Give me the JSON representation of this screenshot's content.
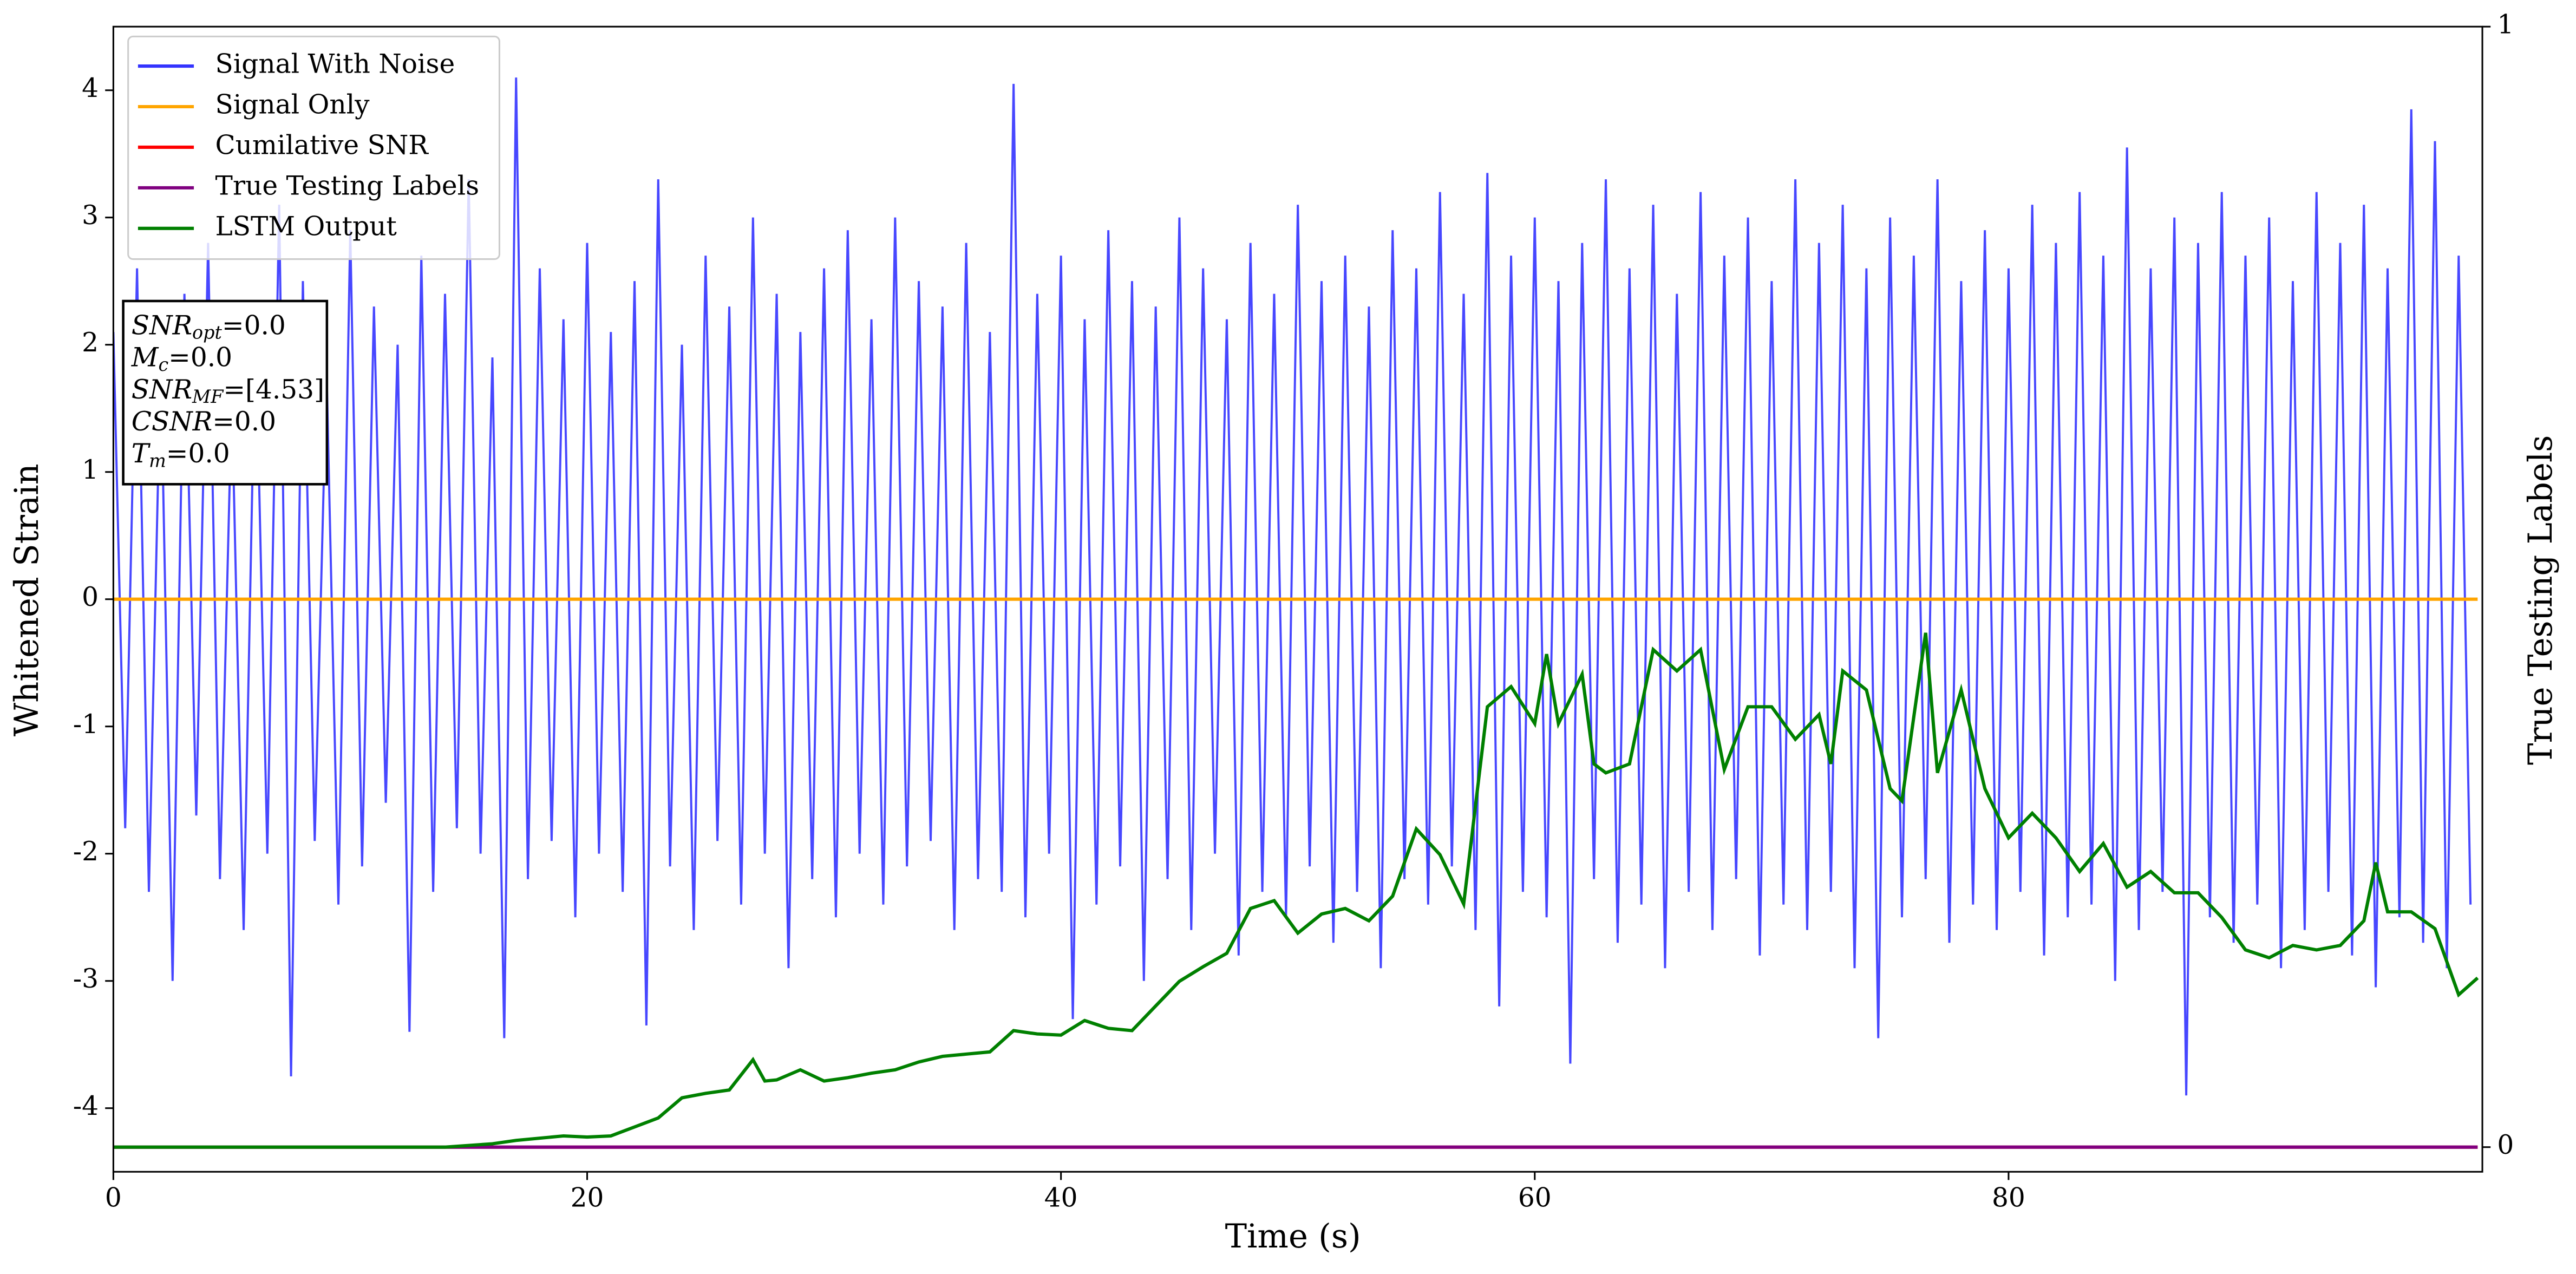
{
  "chart_data": {
    "type": "line",
    "xlabel": "Time (s)",
    "ylabel": "Whitened Strain",
    "y2label": "True Testing Labels",
    "xlim": [
      0,
      100
    ],
    "xticks": [
      0,
      20,
      40,
      60,
      80
    ],
    "ylim": [
      -4.5,
      4.5
    ],
    "yticks": [
      -4,
      -3,
      -2,
      -1,
      0,
      1,
      2,
      3,
      4
    ],
    "y2lim": [
      -0.022,
      1
    ],
    "y2ticks": [
      0,
      1
    ],
    "legend": "upper left",
    "annotations": [
      {
        "main": "SNR",
        "sub": "opt",
        "rest": "=0.0"
      },
      {
        "main": "M",
        "sub": "c",
        "rest": "=0.0"
      },
      {
        "main": "SNR",
        "sub": "MF",
        "rest": "=[4.53]"
      },
      {
        "main": "CSNR",
        "sub": null,
        "rest": "=0.0"
      },
      {
        "main": "T",
        "sub": "m",
        "rest": "=0.0"
      }
    ],
    "series": [
      {
        "name": "Signal With Noise",
        "color": "#3333ff",
        "axis": "y",
        "x": [
          0,
          0.5,
          1,
          1.5,
          2,
          2.5,
          3,
          3.5,
          4,
          4.5,
          5,
          5.5,
          6,
          6.5,
          7,
          7.5,
          8,
          8.5,
          9,
          9.5,
          10,
          10.5,
          11,
          11.5,
          12,
          12.5,
          13,
          13.5,
          14,
          14.5,
          15,
          15.5,
          16,
          16.5,
          17,
          17.5,
          18,
          18.5,
          19,
          19.5,
          20,
          20.5,
          21,
          21.5,
          22,
          22.5,
          23,
          23.5,
          24,
          24.5,
          25,
          25.5,
          26,
          26.5,
          27,
          27.5,
          28,
          28.5,
          29,
          29.5,
          30,
          30.5,
          31,
          31.5,
          32,
          32.5,
          33,
          33.5,
          34,
          34.5,
          35,
          35.5,
          36,
          36.5,
          37,
          37.5,
          38,
          38.5,
          39,
          39.5,
          40,
          40.5,
          41,
          41.5,
          42,
          42.5,
          43,
          43.5,
          44,
          44.5,
          45,
          45.5,
          46,
          46.5,
          47,
          47.5,
          48,
          48.5,
          49,
          49.5,
          50,
          50.5,
          51,
          51.5,
          52,
          52.5,
          53,
          53.5,
          54,
          54.5,
          55,
          55.5,
          56,
          56.5,
          57,
          57.5,
          58,
          58.5,
          59,
          59.5,
          60,
          60.5,
          61,
          61.5,
          62,
          62.5,
          63,
          63.5,
          64,
          64.5,
          65,
          65.5,
          66,
          66.5,
          67,
          67.5,
          68,
          68.5,
          69,
          69.5,
          70,
          70.5,
          71,
          71.5,
          72,
          72.5,
          73,
          73.5,
          74,
          74.5,
          75,
          75.5,
          76,
          76.5,
          77,
          77.5,
          78,
          78.5,
          79,
          79.5,
          80,
          80.5,
          81,
          81.5,
          82,
          82.5,
          83,
          83.5,
          84,
          84.5,
          85,
          85.5,
          86,
          86.5,
          87,
          87.5,
          88,
          88.5,
          89,
          89.5,
          90,
          90.5,
          91,
          91.5,
          92,
          92.5,
          93,
          93.5,
          94,
          94.5,
          95,
          95.5,
          96,
          96.5,
          97,
          97.5,
          98,
          98.5,
          99,
          99.5
        ],
        "values": [
          2.1,
          -1.8,
          2.6,
          -2.3,
          1.9,
          -3.0,
          2.4,
          -1.7,
          2.8,
          -2.2,
          1.6,
          -2.6,
          2.2,
          -2.0,
          3.1,
          -3.75,
          2.5,
          -1.9,
          1.8,
          -2.4,
          2.9,
          -2.1,
          2.3,
          -1.6,
          2.0,
          -3.4,
          2.7,
          -2.3,
          2.4,
          -1.8,
          3.3,
          -2.0,
          1.9,
          -3.45,
          4.1,
          -2.2,
          2.6,
          -1.9,
          2.2,
          -2.5,
          2.8,
          -2.0,
          2.1,
          -2.3,
          2.5,
          -3.35,
          3.3,
          -2.1,
          2.0,
          -2.6,
          2.7,
          -1.9,
          2.3,
          -2.4,
          3.0,
          -2.0,
          2.4,
          -2.9,
          2.1,
          -2.2,
          2.6,
          -2.5,
          2.9,
          -2.0,
          2.2,
          -2.4,
          3.0,
          -2.1,
          2.5,
          -1.9,
          2.3,
          -2.6,
          2.8,
          -2.2,
          2.1,
          -2.3,
          4.05,
          -2.5,
          2.4,
          -2.0,
          2.7,
          -3.3,
          2.2,
          -2.4,
          2.9,
          -2.1,
          2.5,
          -3.0,
          2.3,
          -2.2,
          3.0,
          -2.6,
          2.6,
          -2.0,
          2.2,
          -2.8,
          2.8,
          -2.3,
          2.4,
          -2.5,
          3.1,
          -2.1,
          2.5,
          -2.7,
          2.7,
          -2.3,
          2.3,
          -2.9,
          2.9,
          -2.2,
          2.6,
          -2.4,
          3.2,
          -2.1,
          2.4,
          -2.6,
          3.35,
          -3.2,
          2.7,
          -2.3,
          3.0,
          -2.5,
          2.5,
          -3.65,
          2.8,
          -2.2,
          3.3,
          -2.7,
          2.6,
          -2.4,
          3.1,
          -2.9,
          2.4,
          -2.3,
          3.2,
          -2.6,
          2.7,
          -2.2,
          3.0,
          -2.8,
          2.5,
          -2.4,
          3.3,
          -2.6,
          2.8,
          -2.3,
          3.1,
          -2.9,
          2.6,
          -3.45,
          3.0,
          -2.5,
          2.7,
          -2.2,
          3.3,
          -2.7,
          2.5,
          -2.4,
          2.9,
          -2.6,
          2.6,
          -2.3,
          3.1,
          -2.8,
          2.8,
          -2.5,
          3.2,
          -2.4,
          2.7,
          -3.0,
          3.55,
          -2.6,
          2.6,
          -2.3,
          3.0,
          -3.9,
          2.8,
          -2.5,
          3.2,
          -2.7,
          2.7,
          -2.4,
          3.0,
          -2.9,
          2.5,
          -2.6,
          3.2,
          -2.3,
          2.8,
          -2.8,
          3.1,
          -3.05,
          2.6,
          -2.5,
          3.85,
          -2.7,
          3.6,
          -2.9,
          2.7,
          -2.4
        ]
      },
      {
        "name": "Signal Only",
        "color": "#ffa500",
        "axis": "y",
        "x": [
          0,
          99.8
        ],
        "values": [
          0,
          0
        ]
      },
      {
        "name": "Cumilative SNR",
        "color": "#ff0000",
        "axis": "y2",
        "x": [
          0,
          99.8
        ],
        "values": [
          0,
          0
        ]
      },
      {
        "name": "True Testing Labels",
        "color": "#800080",
        "axis": "y2",
        "x": [
          0,
          99.8
        ],
        "values": [
          0,
          0
        ]
      },
      {
        "name": "LSTM Output",
        "color": "#008000",
        "axis": "y2",
        "x": [
          0,
          14,
          16,
          17,
          19,
          20,
          21,
          22,
          23,
          24,
          25,
          26,
          27,
          27.5,
          28,
          29,
          30,
          31,
          32,
          33,
          34,
          35,
          36,
          37,
          38,
          39,
          40,
          41,
          42,
          43,
          44,
          45,
          46,
          47,
          48,
          49,
          50,
          51,
          52,
          53,
          54,
          55,
          56,
          57,
          58,
          59,
          60,
          60.5,
          61,
          62,
          62.5,
          63,
          64,
          65,
          66,
          67,
          68,
          69,
          70,
          71,
          72,
          72.5,
          73,
          74,
          75,
          75.5,
          76.5,
          77,
          78,
          79,
          80,
          81,
          82,
          83,
          84,
          85,
          86,
          87,
          88,
          89,
          90,
          91,
          92,
          93,
          94,
          95,
          95.5,
          96,
          97,
          98,
          99,
          99.8
        ],
        "values": [
          0,
          0,
          0.003,
          0.006,
          0.01,
          0.009,
          0.01,
          0.018,
          0.026,
          0.044,
          0.048,
          0.051,
          0.078,
          0.059,
          0.06,
          0.069,
          0.059,
          0.062,
          0.066,
          0.069,
          0.076,
          0.081,
          0.083,
          0.085,
          0.104,
          0.101,
          0.1,
          0.113,
          0.106,
          0.104,
          0.126,
          0.148,
          0.161,
          0.173,
          0.213,
          0.22,
          0.191,
          0.208,
          0.213,
          0.202,
          0.224,
          0.284,
          0.261,
          0.217,
          0.393,
          0.411,
          0.378,
          0.44,
          0.378,
          0.422,
          0.342,
          0.334,
          0.342,
          0.444,
          0.425,
          0.444,
          0.337,
          0.393,
          0.393,
          0.364,
          0.386,
          0.342,
          0.425,
          0.408,
          0.32,
          0.309,
          0.459,
          0.334,
          0.408,
          0.32,
          0.276,
          0.298,
          0.276,
          0.246,
          0.271,
          0.232,
          0.246,
          0.227,
          0.227,
          0.205,
          0.176,
          0.169,
          0.18,
          0.176,
          0.18,
          0.202,
          0.254,
          0.21,
          0.21,
          0.195,
          0.136,
          0.151
        ]
      }
    ]
  }
}
